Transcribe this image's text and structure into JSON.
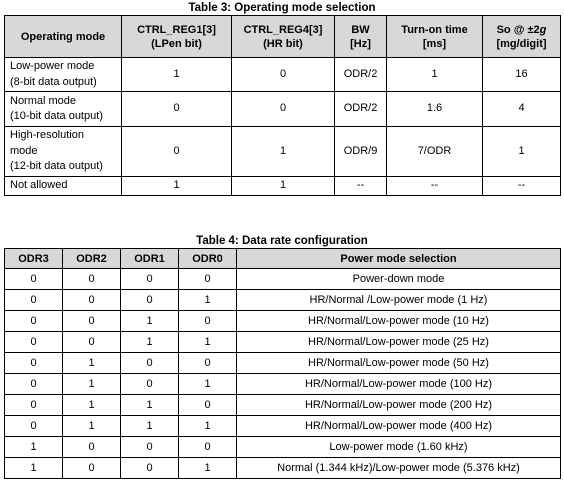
{
  "table3": {
    "caption": "Table 3: Operating mode selection",
    "headers": [
      {
        "line1": "Operating mode",
        "line2": ""
      },
      {
        "line1": "CTRL_REG1[3]",
        "line2": "(LPen bit)"
      },
      {
        "line1": "CTRL_REG4[3]",
        "line2": "(HR bit)"
      },
      {
        "line1": "BW",
        "line2": "[Hz]"
      },
      {
        "line1": "Turn-on time",
        "line2": "[ms]"
      },
      {
        "so_prefix": "So @ ±2",
        "so_italic": "g",
        "line2": "[mg/digit]"
      }
    ],
    "rows": [
      {
        "mode": [
          "Low-power mode",
          "(8-bit data output)"
        ],
        "lpen": "1",
        "hr": "0",
        "bw": "ODR/2",
        "turn_on": "1",
        "so": "16"
      },
      {
        "mode": [
          "Normal mode",
          "(10-bit data output)"
        ],
        "lpen": "0",
        "hr": "0",
        "bw": "ODR/2",
        "turn_on": "1.6",
        "so": "4"
      },
      {
        "mode": [
          "High-resolution",
          "mode",
          "(12-bit data output)"
        ],
        "lpen": "0",
        "hr": "1",
        "bw": "ODR/9",
        "turn_on": "7/ODR",
        "so": "1"
      },
      {
        "mode": [
          "Not allowed"
        ],
        "lpen": "1",
        "hr": "1",
        "bw": "--",
        "turn_on": "--",
        "so": "--"
      }
    ]
  },
  "table4": {
    "caption": "Table 4: Data rate configuration",
    "headers": [
      "ODR3",
      "ODR2",
      "ODR1",
      "ODR0",
      "Power mode selection"
    ],
    "rows": [
      [
        "0",
        "0",
        "0",
        "0",
        "Power-down mode"
      ],
      [
        "0",
        "0",
        "0",
        "1",
        "HR/Normal /Low-power mode (1 Hz)"
      ],
      [
        "0",
        "0",
        "1",
        "0",
        "HR/Normal/Low-power mode (10 Hz)"
      ],
      [
        "0",
        "0",
        "1",
        "1",
        "HR/Normal/Low-power mode (25 Hz)"
      ],
      [
        "0",
        "1",
        "0",
        "0",
        "HR/Normal/Low-power mode (50 Hz)"
      ],
      [
        "0",
        "1",
        "0",
        "1",
        "HR/Normal/Low-power mode (100 Hz)"
      ],
      [
        "0",
        "1",
        "1",
        "0",
        "HR/Normal/Low-power mode (200 Hz)"
      ],
      [
        "0",
        "1",
        "1",
        "1",
        "HR/Normal/Low-power mode (400 Hz)"
      ],
      [
        "1",
        "0",
        "0",
        "0",
        "Low-power mode (1.60 kHz)"
      ],
      [
        "1",
        "0",
        "0",
        "1",
        "Normal (1.344 kHz)/Low-power mode (5.376 kHz)"
      ]
    ]
  }
}
